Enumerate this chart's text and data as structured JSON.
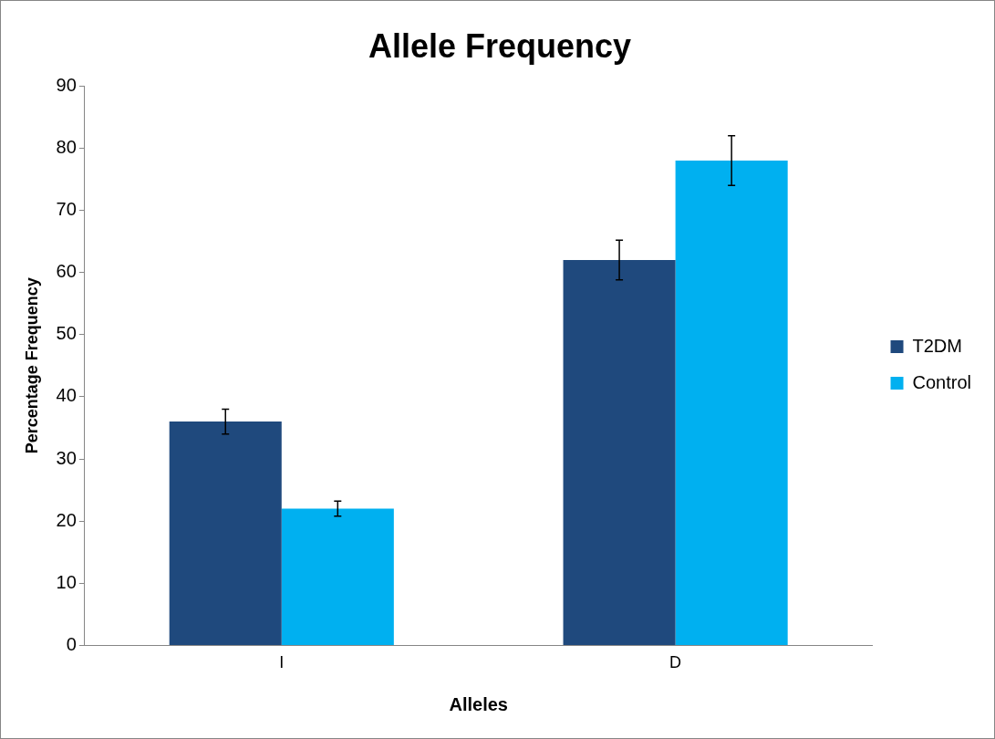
{
  "chart_data": {
    "type": "bar",
    "title": "Allele Frequency",
    "xlabel": "Alleles",
    "ylabel": "Percentage Frequency",
    "categories": [
      "I",
      "D"
    ],
    "series": [
      {
        "name": "T2DM",
        "color": "#1f497d",
        "values": [
          36,
          62
        ],
        "errors": [
          2,
          3.2
        ]
      },
      {
        "name": "Control",
        "color": "#00b0f0",
        "values": [
          22,
          78
        ],
        "errors": [
          1.2,
          4
        ]
      }
    ],
    "ylim": [
      0,
      90
    ],
    "yticks": [
      0,
      10,
      20,
      30,
      40,
      50,
      60,
      70,
      80,
      90
    ],
    "grid": false,
    "legend": "right"
  }
}
